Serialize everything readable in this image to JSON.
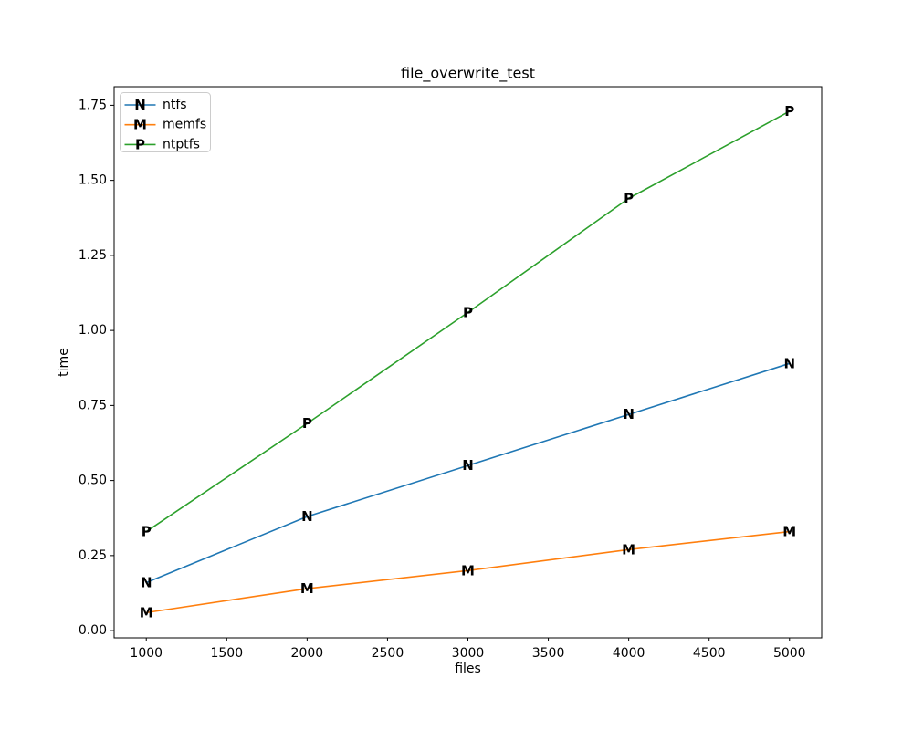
{
  "chart_data": {
    "type": "line",
    "title": "file_overwrite_test",
    "xlabel": "files",
    "ylabel": "time",
    "x": [
      1000,
      2000,
      3000,
      4000,
      5000
    ],
    "series": [
      {
        "name": "ntfs",
        "color": "#1f77b4",
        "marker": "N",
        "values": [
          0.16,
          0.38,
          0.55,
          0.72,
          0.89
        ]
      },
      {
        "name": "memfs",
        "color": "#ff7f0e",
        "marker": "M",
        "values": [
          0.06,
          0.14,
          0.2,
          0.27,
          0.33
        ]
      },
      {
        "name": "ntptfs",
        "color": "#2ca02c",
        "marker": "P",
        "values": [
          0.33,
          0.69,
          1.06,
          1.44,
          1.73
        ]
      }
    ],
    "xticks": [
      1000,
      1500,
      2000,
      2500,
      3000,
      3500,
      4000,
      4500,
      5000
    ],
    "yticks": [
      0.0,
      0.25,
      0.5,
      0.75,
      1.0,
      1.25,
      1.5,
      1.75
    ],
    "xlim": [
      800,
      5200
    ],
    "ylim": [
      -0.024,
      1.812
    ],
    "grid": false,
    "legend": {
      "position": "upper-left",
      "entries": [
        "ntfs",
        "memfs",
        "ntptfs"
      ]
    },
    "colors": {
      "axis": "#000000",
      "legend_border": "#cccccc",
      "background": "#ffffff"
    }
  }
}
